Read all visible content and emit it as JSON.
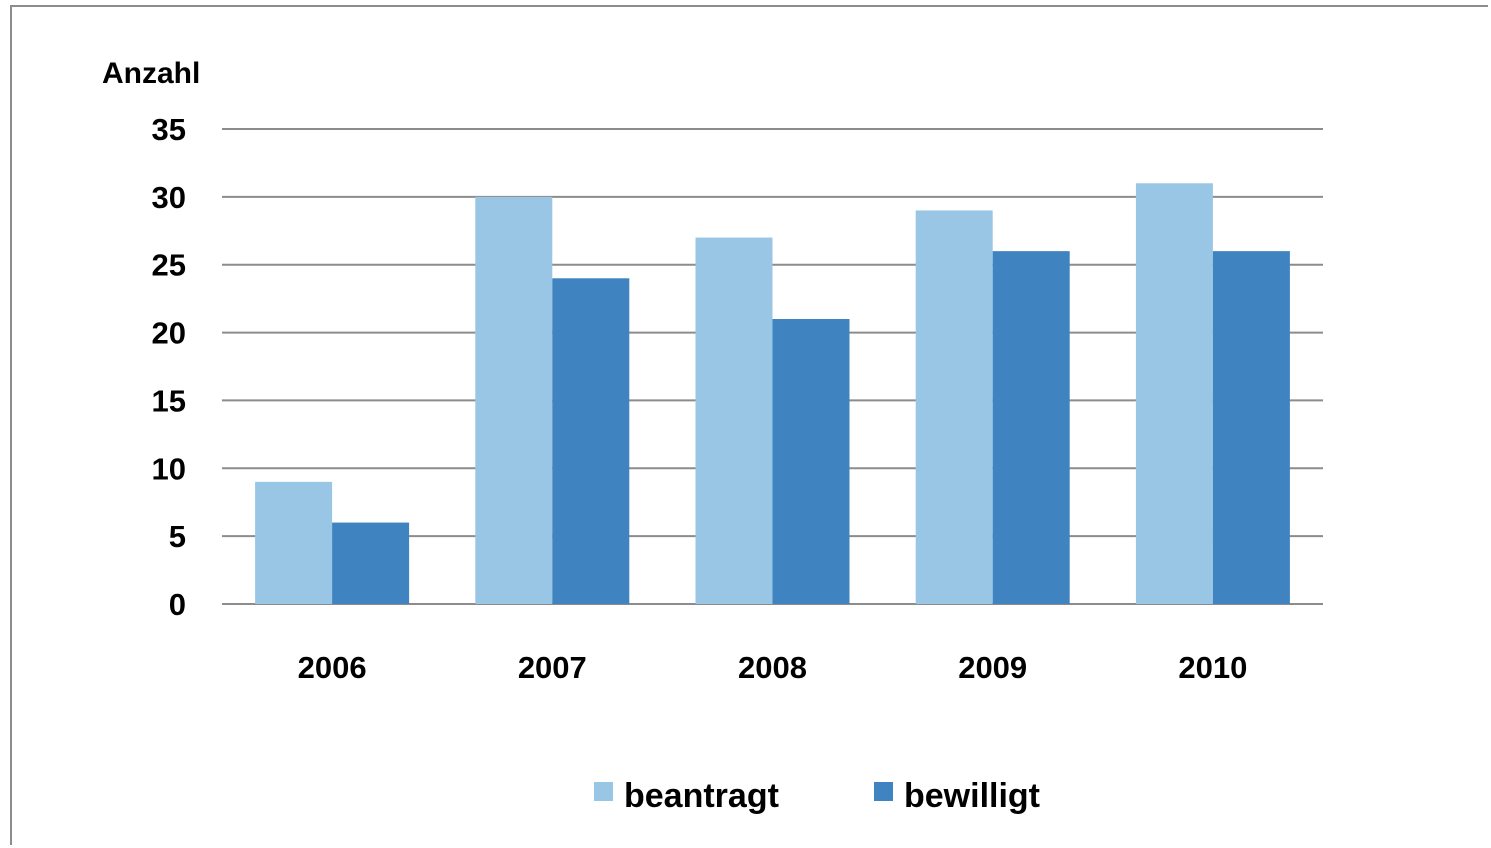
{
  "chart_data": {
    "type": "bar",
    "title": "",
    "xlabel": "",
    "ylabel": "Anzahl",
    "categories": [
      "2006",
      "2007",
      "2008",
      "2009",
      "2010"
    ],
    "series": [
      {
        "name": "beantragt",
        "values": [
          9,
          30,
          27,
          29,
          31
        ],
        "color": "#9ac6e6"
      },
      {
        "name": "bewilligt",
        "values": [
          6,
          24,
          21,
          26,
          26
        ],
        "color": "#3f84c1"
      }
    ],
    "ylim": [
      0,
      35
    ],
    "yticks": [
      0,
      5,
      10,
      15,
      20,
      25,
      30,
      35
    ],
    "grid": true,
    "legend_position": "bottom"
  }
}
